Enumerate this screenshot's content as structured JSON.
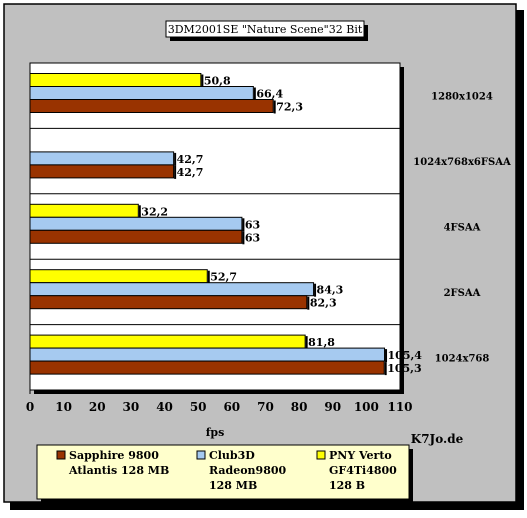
{
  "chart_data": {
    "type": "bar",
    "orientation": "horizontal",
    "title": "3DM2001SE \"Nature Scene\"32 Bit",
    "xlabel": "fps",
    "ylabel": "",
    "watermark": "K7Jo.de",
    "xlim": [
      0,
      110
    ],
    "xticks": [
      0,
      10,
      20,
      30,
      40,
      50,
      60,
      70,
      80,
      90,
      100,
      110
    ],
    "grid": false,
    "legend_position": "bottom",
    "categories": [
      "1280x1024",
      "1024x768x6FSAA",
      "4FSAA",
      "2FSAA",
      "1024x768"
    ],
    "series": [
      {
        "name": "PNY Verto GF4Ti4800 128 B",
        "legend_lines": [
          "PNY Verto",
          "GF4Ti4800",
          "128 B"
        ],
        "color": "#ffff00",
        "values": [
          50.8,
          null,
          32.2,
          52.7,
          81.8
        ],
        "labels": [
          "50,8",
          "",
          "32,2",
          "52,7",
          "81,8"
        ]
      },
      {
        "name": "Club3D Radeon9800 128 MB",
        "legend_lines": [
          "Club3D",
          "Radeon9800",
          "128 MB"
        ],
        "color": "#a6caf0",
        "values": [
          66.4,
          42.7,
          63,
          84.3,
          105.4
        ],
        "labels": [
          "66,4",
          "42,7",
          "63",
          "84,3",
          "105,4"
        ]
      },
      {
        "name": "Sapphire 9800 Atlantis 128 MB",
        "legend_lines": [
          "Sapphire 9800",
          "Atlantis 128 MB"
        ],
        "color": "#993300",
        "values": [
          72.3,
          42.7,
          63,
          82.3,
          105.3
        ],
        "labels": [
          "72,3",
          "42,7",
          "63",
          "82,3",
          "105,3"
        ]
      }
    ],
    "legend_order": [
      2,
      1,
      0
    ],
    "colors": {
      "background": "#c0c0c0",
      "plot_area": "#ffffff",
      "legend_bg": "#ffffcc",
      "outline": "#000000"
    }
  }
}
